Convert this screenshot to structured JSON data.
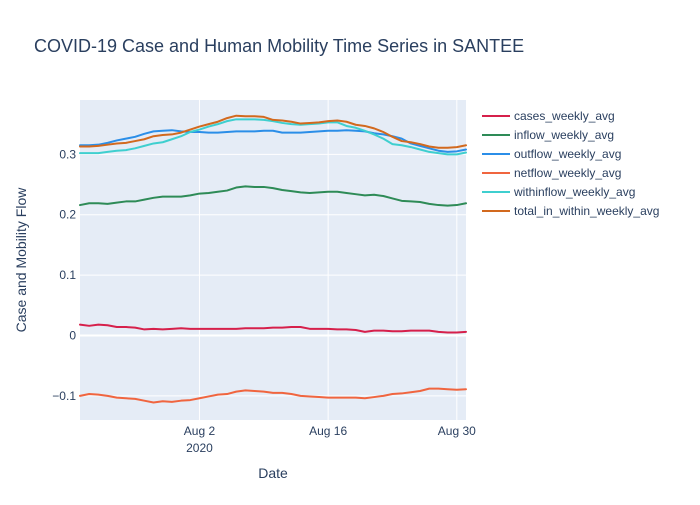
{
  "chart_data": {
    "type": "line",
    "title": "COVID-19 Case and Human Mobility Time Series in SANTEE",
    "xlabel": "Date",
    "ylabel": "Case and Mobility Flow",
    "x_start": "2020-07-20",
    "x_end": "2020-08-31",
    "xlim": [
      "2020-07-20",
      "2020-08-31"
    ],
    "ylim": [
      -0.14,
      0.39
    ],
    "grid": true,
    "legend_position": "right",
    "x_ticks": [
      {
        "date": "2020-08-02",
        "label": "Aug 2",
        "sublabel": "2020"
      },
      {
        "date": "2020-08-16",
        "label": "Aug 16",
        "sublabel": ""
      },
      {
        "date": "2020-08-30",
        "label": "Aug 30",
        "sublabel": ""
      }
    ],
    "y_ticks": [
      {
        "value": -0.1,
        "label": "−0.1"
      },
      {
        "value": 0,
        "label": "0"
      },
      {
        "value": 0.1,
        "label": "0.1"
      },
      {
        "value": 0.2,
        "label": "0.2"
      },
      {
        "value": 0.3,
        "label": "0.3"
      }
    ],
    "series": [
      {
        "name": "cases_weekly_avg",
        "color": "#d6204b",
        "values": [
          [
            "2020-07-20",
            0.018
          ],
          [
            "2020-07-21",
            0.016
          ],
          [
            "2020-07-22",
            0.018
          ],
          [
            "2020-07-23",
            0.017
          ],
          [
            "2020-07-24",
            0.014
          ],
          [
            "2020-07-25",
            0.014
          ],
          [
            "2020-07-26",
            0.013
          ],
          [
            "2020-07-27",
            0.01
          ],
          [
            "2020-07-28",
            0.011
          ],
          [
            "2020-07-29",
            0.01
          ],
          [
            "2020-07-30",
            0.011
          ],
          [
            "2020-07-31",
            0.012
          ],
          [
            "2020-08-01",
            0.011
          ],
          [
            "2020-08-02",
            0.011
          ],
          [
            "2020-08-03",
            0.011
          ],
          [
            "2020-08-04",
            0.011
          ],
          [
            "2020-08-05",
            0.011
          ],
          [
            "2020-08-06",
            0.011
          ],
          [
            "2020-08-07",
            0.012
          ],
          [
            "2020-08-08",
            0.012
          ],
          [
            "2020-08-09",
            0.012
          ],
          [
            "2020-08-10",
            0.013
          ],
          [
            "2020-08-11",
            0.013
          ],
          [
            "2020-08-12",
            0.014
          ],
          [
            "2020-08-13",
            0.014
          ],
          [
            "2020-08-14",
            0.011
          ],
          [
            "2020-08-15",
            0.011
          ],
          [
            "2020-08-16",
            0.011
          ],
          [
            "2020-08-17",
            0.01
          ],
          [
            "2020-08-18",
            0.01
          ],
          [
            "2020-08-19",
            0.009
          ],
          [
            "2020-08-20",
            0.006
          ],
          [
            "2020-08-21",
            0.008
          ],
          [
            "2020-08-22",
            0.008
          ],
          [
            "2020-08-23",
            0.007
          ],
          [
            "2020-08-24",
            0.007
          ],
          [
            "2020-08-25",
            0.008
          ],
          [
            "2020-08-26",
            0.008
          ],
          [
            "2020-08-27",
            0.008
          ],
          [
            "2020-08-28",
            0.006
          ],
          [
            "2020-08-29",
            0.005
          ],
          [
            "2020-08-30",
            0.005
          ],
          [
            "2020-08-31",
            0.006
          ]
        ]
      },
      {
        "name": "inflow_weekly_avg",
        "color": "#2e8b57",
        "values": [
          [
            "2020-07-20",
            0.216
          ],
          [
            "2020-07-21",
            0.219
          ],
          [
            "2020-07-22",
            0.219
          ],
          [
            "2020-07-23",
            0.218
          ],
          [
            "2020-07-24",
            0.22
          ],
          [
            "2020-07-25",
            0.222
          ],
          [
            "2020-07-26",
            0.222
          ],
          [
            "2020-07-27",
            0.225
          ],
          [
            "2020-07-28",
            0.228
          ],
          [
            "2020-07-29",
            0.23
          ],
          [
            "2020-07-30",
            0.23
          ],
          [
            "2020-07-31",
            0.23
          ],
          [
            "2020-08-01",
            0.232
          ],
          [
            "2020-08-02",
            0.235
          ],
          [
            "2020-08-03",
            0.236
          ],
          [
            "2020-08-04",
            0.238
          ],
          [
            "2020-08-05",
            0.24
          ],
          [
            "2020-08-06",
            0.245
          ],
          [
            "2020-08-07",
            0.247
          ],
          [
            "2020-08-08",
            0.246
          ],
          [
            "2020-08-09",
            0.246
          ],
          [
            "2020-08-10",
            0.244
          ],
          [
            "2020-08-11",
            0.241
          ],
          [
            "2020-08-12",
            0.239
          ],
          [
            "2020-08-13",
            0.237
          ],
          [
            "2020-08-14",
            0.236
          ],
          [
            "2020-08-15",
            0.237
          ],
          [
            "2020-08-16",
            0.238
          ],
          [
            "2020-08-17",
            0.238
          ],
          [
            "2020-08-18",
            0.236
          ],
          [
            "2020-08-19",
            0.234
          ],
          [
            "2020-08-20",
            0.232
          ],
          [
            "2020-08-21",
            0.233
          ],
          [
            "2020-08-22",
            0.231
          ],
          [
            "2020-08-23",
            0.227
          ],
          [
            "2020-08-24",
            0.223
          ],
          [
            "2020-08-25",
            0.222
          ],
          [
            "2020-08-26",
            0.221
          ],
          [
            "2020-08-27",
            0.218
          ],
          [
            "2020-08-28",
            0.216
          ],
          [
            "2020-08-29",
            0.215
          ],
          [
            "2020-08-30",
            0.216
          ],
          [
            "2020-08-31",
            0.219
          ]
        ]
      },
      {
        "name": "outflow_weekly_avg",
        "color": "#2b8ee8",
        "values": [
          [
            "2020-07-20",
            0.315
          ],
          [
            "2020-07-21",
            0.315
          ],
          [
            "2020-07-22",
            0.316
          ],
          [
            "2020-07-23",
            0.319
          ],
          [
            "2020-07-24",
            0.323
          ],
          [
            "2020-07-25",
            0.326
          ],
          [
            "2020-07-26",
            0.329
          ],
          [
            "2020-07-27",
            0.334
          ],
          [
            "2020-07-28",
            0.338
          ],
          [
            "2020-07-29",
            0.339
          ],
          [
            "2020-07-30",
            0.34
          ],
          [
            "2020-07-31",
            0.338
          ],
          [
            "2020-08-01",
            0.337
          ],
          [
            "2020-08-02",
            0.337
          ],
          [
            "2020-08-03",
            0.336
          ],
          [
            "2020-08-04",
            0.336
          ],
          [
            "2020-08-05",
            0.337
          ],
          [
            "2020-08-06",
            0.338
          ],
          [
            "2020-08-07",
            0.338
          ],
          [
            "2020-08-08",
            0.338
          ],
          [
            "2020-08-09",
            0.339
          ],
          [
            "2020-08-10",
            0.339
          ],
          [
            "2020-08-11",
            0.336
          ],
          [
            "2020-08-12",
            0.336
          ],
          [
            "2020-08-13",
            0.336
          ],
          [
            "2020-08-14",
            0.337
          ],
          [
            "2020-08-15",
            0.338
          ],
          [
            "2020-08-16",
            0.339
          ],
          [
            "2020-08-17",
            0.339
          ],
          [
            "2020-08-18",
            0.34
          ],
          [
            "2020-08-19",
            0.339
          ],
          [
            "2020-08-20",
            0.338
          ],
          [
            "2020-08-21",
            0.335
          ],
          [
            "2020-08-22",
            0.333
          ],
          [
            "2020-08-23",
            0.33
          ],
          [
            "2020-08-24",
            0.326
          ],
          [
            "2020-08-25",
            0.318
          ],
          [
            "2020-08-26",
            0.314
          ],
          [
            "2020-08-27",
            0.31
          ],
          [
            "2020-08-28",
            0.306
          ],
          [
            "2020-08-29",
            0.304
          ],
          [
            "2020-08-30",
            0.305
          ],
          [
            "2020-08-31",
            0.308
          ]
        ]
      },
      {
        "name": "netflow_weekly_avg",
        "color": "#f0653f",
        "values": [
          [
            "2020-07-20",
            -0.1
          ],
          [
            "2020-07-21",
            -0.097
          ],
          [
            "2020-07-22",
            -0.098
          ],
          [
            "2020-07-23",
            -0.1
          ],
          [
            "2020-07-24",
            -0.103
          ],
          [
            "2020-07-25",
            -0.104
          ],
          [
            "2020-07-26",
            -0.105
          ],
          [
            "2020-07-27",
            -0.108
          ],
          [
            "2020-07-28",
            -0.111
          ],
          [
            "2020-07-29",
            -0.109
          ],
          [
            "2020-07-30",
            -0.11
          ],
          [
            "2020-07-31",
            -0.108
          ],
          [
            "2020-08-01",
            -0.107
          ],
          [
            "2020-08-02",
            -0.104
          ],
          [
            "2020-08-03",
            -0.101
          ],
          [
            "2020-08-04",
            -0.098
          ],
          [
            "2020-08-05",
            -0.097
          ],
          [
            "2020-08-06",
            -0.093
          ],
          [
            "2020-08-07",
            -0.091
          ],
          [
            "2020-08-08",
            -0.092
          ],
          [
            "2020-08-09",
            -0.093
          ],
          [
            "2020-08-10",
            -0.095
          ],
          [
            "2020-08-11",
            -0.095
          ],
          [
            "2020-08-12",
            -0.097
          ],
          [
            "2020-08-13",
            -0.1
          ],
          [
            "2020-08-14",
            -0.101
          ],
          [
            "2020-08-15",
            -0.102
          ],
          [
            "2020-08-16",
            -0.103
          ],
          [
            "2020-08-17",
            -0.103
          ],
          [
            "2020-08-18",
            -0.103
          ],
          [
            "2020-08-19",
            -0.103
          ],
          [
            "2020-08-20",
            -0.104
          ],
          [
            "2020-08-21",
            -0.102
          ],
          [
            "2020-08-22",
            -0.1
          ],
          [
            "2020-08-23",
            -0.097
          ],
          [
            "2020-08-24",
            -0.096
          ],
          [
            "2020-08-25",
            -0.094
          ],
          [
            "2020-08-26",
            -0.092
          ],
          [
            "2020-08-27",
            -0.088
          ],
          [
            "2020-08-28",
            -0.088
          ],
          [
            "2020-08-29",
            -0.089
          ],
          [
            "2020-08-30",
            -0.09
          ],
          [
            "2020-08-31",
            -0.089
          ]
        ]
      },
      {
        "name": "withinflow_weekly_avg",
        "color": "#3fcfcf",
        "values": [
          [
            "2020-07-20",
            0.302
          ],
          [
            "2020-07-21",
            0.302
          ],
          [
            "2020-07-22",
            0.302
          ],
          [
            "2020-07-23",
            0.304
          ],
          [
            "2020-07-24",
            0.306
          ],
          [
            "2020-07-25",
            0.307
          ],
          [
            "2020-07-26",
            0.31
          ],
          [
            "2020-07-27",
            0.314
          ],
          [
            "2020-07-28",
            0.318
          ],
          [
            "2020-07-29",
            0.32
          ],
          [
            "2020-07-30",
            0.325
          ],
          [
            "2020-07-31",
            0.33
          ],
          [
            "2020-08-01",
            0.337
          ],
          [
            "2020-08-02",
            0.341
          ],
          [
            "2020-08-03",
            0.346
          ],
          [
            "2020-08-04",
            0.35
          ],
          [
            "2020-08-05",
            0.355
          ],
          [
            "2020-08-06",
            0.358
          ],
          [
            "2020-08-07",
            0.358
          ],
          [
            "2020-08-08",
            0.358
          ],
          [
            "2020-08-09",
            0.357
          ],
          [
            "2020-08-10",
            0.355
          ],
          [
            "2020-08-11",
            0.352
          ],
          [
            "2020-08-12",
            0.35
          ],
          [
            "2020-08-13",
            0.349
          ],
          [
            "2020-08-14",
            0.35
          ],
          [
            "2020-08-15",
            0.351
          ],
          [
            "2020-08-16",
            0.353
          ],
          [
            "2020-08-17",
            0.353
          ],
          [
            "2020-08-18",
            0.347
          ],
          [
            "2020-08-19",
            0.344
          ],
          [
            "2020-08-20",
            0.339
          ],
          [
            "2020-08-21",
            0.333
          ],
          [
            "2020-08-22",
            0.326
          ],
          [
            "2020-08-23",
            0.317
          ],
          [
            "2020-08-24",
            0.315
          ],
          [
            "2020-08-25",
            0.312
          ],
          [
            "2020-08-26",
            0.308
          ],
          [
            "2020-08-27",
            0.304
          ],
          [
            "2020-08-28",
            0.302
          ],
          [
            "2020-08-29",
            0.3
          ],
          [
            "2020-08-30",
            0.3
          ],
          [
            "2020-08-31",
            0.303
          ]
        ]
      },
      {
        "name": "total_in_within_weekly_avg",
        "color": "#d2691e",
        "values": [
          [
            "2020-07-20",
            0.313
          ],
          [
            "2020-07-21",
            0.313
          ],
          [
            "2020-07-22",
            0.314
          ],
          [
            "2020-07-23",
            0.316
          ],
          [
            "2020-07-24",
            0.318
          ],
          [
            "2020-07-25",
            0.319
          ],
          [
            "2020-07-26",
            0.322
          ],
          [
            "2020-07-27",
            0.325
          ],
          [
            "2020-07-28",
            0.33
          ],
          [
            "2020-07-29",
            0.332
          ],
          [
            "2020-07-30",
            0.333
          ],
          [
            "2020-07-31",
            0.336
          ],
          [
            "2020-08-01",
            0.341
          ],
          [
            "2020-08-02",
            0.346
          ],
          [
            "2020-08-03",
            0.35
          ],
          [
            "2020-08-04",
            0.354
          ],
          [
            "2020-08-05",
            0.36
          ],
          [
            "2020-08-06",
            0.364
          ],
          [
            "2020-08-07",
            0.363
          ],
          [
            "2020-08-08",
            0.363
          ],
          [
            "2020-08-09",
            0.362
          ],
          [
            "2020-08-10",
            0.357
          ],
          [
            "2020-08-11",
            0.356
          ],
          [
            "2020-08-12",
            0.354
          ],
          [
            "2020-08-13",
            0.351
          ],
          [
            "2020-08-14",
            0.352
          ],
          [
            "2020-08-15",
            0.353
          ],
          [
            "2020-08-16",
            0.355
          ],
          [
            "2020-08-17",
            0.356
          ],
          [
            "2020-08-18",
            0.354
          ],
          [
            "2020-08-19",
            0.349
          ],
          [
            "2020-08-20",
            0.347
          ],
          [
            "2020-08-21",
            0.343
          ],
          [
            "2020-08-22",
            0.337
          ],
          [
            "2020-08-23",
            0.329
          ],
          [
            "2020-08-24",
            0.322
          ],
          [
            "2020-08-25",
            0.32
          ],
          [
            "2020-08-26",
            0.317
          ],
          [
            "2020-08-27",
            0.313
          ],
          [
            "2020-08-28",
            0.311
          ],
          [
            "2020-08-29",
            0.311
          ],
          [
            "2020-08-30",
            0.312
          ],
          [
            "2020-08-31",
            0.315
          ]
        ]
      }
    ]
  }
}
